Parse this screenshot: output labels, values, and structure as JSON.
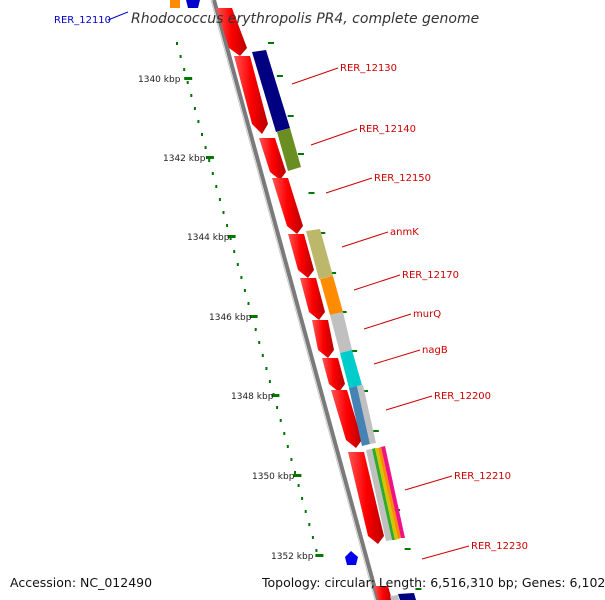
{
  "title": "Rhodococcus erythropolis PR4, complete genome",
  "accession": "Accession: NC_012490",
  "topology": "Topology: circular; Length: 6,516,310 bp; Genes: 6,102",
  "top_gene_label": "RER_12110",
  "kbp_labels": [
    "1340 kbp",
    "1342 kbp",
    "1344 kbp",
    "1346 kbp",
    "1348 kbp",
    "1350 kbp",
    "1352 kbp"
  ],
  "gene_labels": [
    "RER_12130",
    "RER_12140",
    "RER_12150",
    "anmK",
    "RER_12170",
    "murQ",
    "nagB",
    "RER_12200",
    "RER_12210",
    "RER_12230"
  ],
  "colors": {
    "label_red": "#cc0000",
    "label_blue": "#0000cc",
    "forward_strand": "#ff0000",
    "backbone": "#808080",
    "tick_green": "#007700",
    "gene_blocks": [
      "#000080",
      "#6b8e23",
      "#bdb76b",
      "#ff8c00",
      "#c0c0c0",
      "#00cccc",
      "#4682b4",
      "#c0c0c0"
    ]
  }
}
